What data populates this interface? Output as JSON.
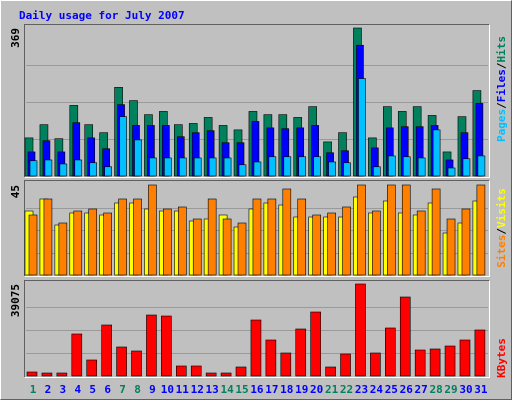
{
  "title": "Daily usage for July 2007",
  "legend_separator": "/",
  "chart_data": [
    {
      "type": "bar",
      "ylim": [
        0,
        369
      ],
      "yticks": [
        369
      ],
      "series": [
        {
          "name": "Hits",
          "color": "#00805c",
          "values": [
            95,
            128,
            93,
            176,
            128,
            108,
            221,
            188,
            153,
            161,
            128,
            131,
            146,
            126,
            115,
            161,
            153,
            153,
            146,
            173,
            85,
            108,
            369,
            95,
            173,
            161,
            173,
            151,
            60,
            148,
            213
          ]
        },
        {
          "name": "Files",
          "color": "#0000ff",
          "values": [
            60,
            88,
            60,
            133,
            95,
            68,
            178,
            126,
            126,
            126,
            98,
            108,
            113,
            83,
            83,
            136,
            120,
            118,
            120,
            126,
            58,
            63,
            326,
            70,
            120,
            123,
            123,
            126,
            40,
            108,
            181
          ]
        },
        {
          "name": "Pages",
          "color": "#00c0ff",
          "values": [
            38,
            40,
            30,
            40,
            33,
            23,
            148,
            90,
            45,
            45,
            45,
            45,
            45,
            45,
            28,
            35,
            48,
            48,
            48,
            48,
            35,
            33,
            243,
            23,
            50,
            48,
            45,
            115,
            20,
            43,
            50
          ]
        }
      ]
    },
    {
      "type": "bar",
      "ylim": [
        0,
        45
      ],
      "yticks": [
        45
      ],
      "series": [
        {
          "name": "Visits",
          "color": "#ffff00",
          "values": [
            32,
            38,
            25,
            31,
            31,
            30,
            36,
            36,
            33,
            32,
            32,
            27,
            28,
            30,
            24,
            33,
            36,
            35,
            29,
            29,
            29,
            29,
            39,
            31,
            37,
            31,
            30,
            36,
            21,
            26,
            37
          ]
        },
        {
          "name": "Sites",
          "color": "#ff8000",
          "values": [
            30,
            38,
            26,
            32,
            33,
            31,
            38,
            38,
            45,
            33,
            34,
            28,
            38,
            28,
            26,
            38,
            38,
            43,
            38,
            30,
            31,
            34,
            45,
            32,
            45,
            45,
            32,
            43,
            28,
            33,
            45
          ]
        }
      ]
    },
    {
      "type": "bar",
      "ylim": [
        0,
        39075
      ],
      "yticks": [
        39075
      ],
      "categories": [
        "1",
        "2",
        "3",
        "4",
        "5",
        "6",
        "7",
        "8",
        "9",
        "10",
        "11",
        "12",
        "13",
        "14",
        "15",
        "16",
        "17",
        "18",
        "19",
        "20",
        "21",
        "22",
        "23",
        "24",
        "25",
        "26",
        "27",
        "28",
        "29",
        "30",
        "31"
      ],
      "label_color": "#0000ff",
      "highlight_label_color": "#00805c",
      "highlight_labels": [
        0,
        6,
        7,
        13,
        14,
        20,
        21,
        27,
        28
      ],
      "series": [
        {
          "name": "KBytes",
          "color": "#ff0000",
          "values": [
            1700,
            1270,
            1270,
            17840,
            6800,
            21660,
            12320,
            10620,
            25900,
            25480,
            4250,
            4250,
            1270,
            1270,
            3820,
            23780,
            15290,
            9770,
            19960,
            27180,
            3820,
            9340,
            39075,
            9770,
            20390,
            33550,
            11040,
            11470,
            12740,
            15290,
            19540
          ]
        }
      ]
    }
  ]
}
